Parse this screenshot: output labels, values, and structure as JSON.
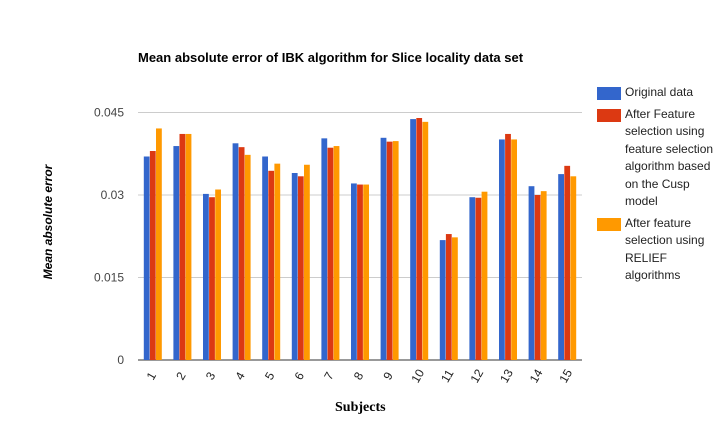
{
  "chart_data": {
    "type": "bar",
    "title": "Mean absolute error of IBK algorithm for Slice locality data set",
    "xlabel": "Subjects",
    "ylabel": "Mean absolute error",
    "categories": [
      "1",
      "2",
      "3",
      "4",
      "5",
      "6",
      "7",
      "8",
      "9",
      "10",
      "11",
      "12",
      "13",
      "14",
      "15"
    ],
    "ylim": [
      0,
      0.045
    ],
    "yticks": [
      0,
      0.015,
      0.03,
      0.045
    ],
    "ytick_labels": [
      "0",
      "0.015",
      "0.03",
      "0.045"
    ],
    "grid": true,
    "legend_position": "right",
    "series": [
      {
        "name": "Original data",
        "color": "#3366cc",
        "values": [
          0.037,
          0.0389,
          0.0302,
          0.0394,
          0.037,
          0.034,
          0.0403,
          0.0321,
          0.0404,
          0.0438,
          0.0218,
          0.0296,
          0.0401,
          0.0316,
          0.0338
        ]
      },
      {
        "name": "After Feature selection using feature selection algorithm based on the Cusp model",
        "color": "#dc3912",
        "values": [
          0.038,
          0.0411,
          0.0296,
          0.0387,
          0.0344,
          0.0334,
          0.0386,
          0.0319,
          0.0397,
          0.044,
          0.0229,
          0.0295,
          0.0411,
          0.03,
          0.0353
        ]
      },
      {
        "name": "After feature selection using RELIEF algorithms",
        "color": "#ff9900",
        "values": [
          0.0421,
          0.0411,
          0.031,
          0.0373,
          0.0357,
          0.0355,
          0.0389,
          0.0319,
          0.0398,
          0.0433,
          0.0223,
          0.0306,
          0.0401,
          0.0307,
          0.0334
        ]
      }
    ]
  }
}
